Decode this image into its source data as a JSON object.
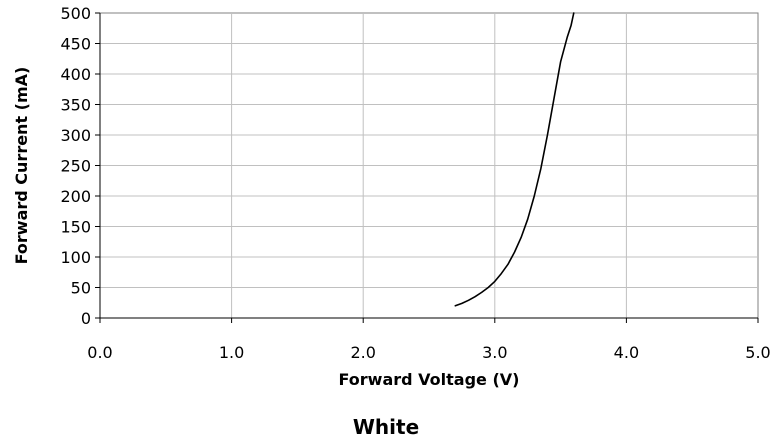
{
  "chart_data": {
    "type": "line",
    "title": "White",
    "xlabel": "Forward Voltage (V)",
    "ylabel": "Forward Current (mA)",
    "xlim": [
      0,
      5
    ],
    "ylim": [
      0,
      500
    ],
    "x_ticks": [
      "0.0",
      "1.0",
      "2.0",
      "3.0",
      "4.0",
      "5.0"
    ],
    "y_ticks": [
      "0",
      "50",
      "100",
      "150",
      "200",
      "250",
      "300",
      "350",
      "400",
      "450",
      "500"
    ],
    "grid": true,
    "legend": "none",
    "colors": {
      "line": "#000000",
      "grid": "#c0c0c0",
      "axis": "#000000",
      "plot_border": "#808080"
    },
    "series": [
      {
        "x": [
          2.7,
          2.75,
          2.8,
          2.85,
          2.9,
          2.95,
          3.0,
          3.05,
          3.1,
          3.15,
          3.2,
          3.25,
          3.3,
          3.35,
          3.4,
          3.45,
          3.5,
          3.55,
          3.58,
          3.6
        ],
        "y": [
          20,
          24,
          29,
          35,
          42,
          50,
          60,
          73,
          88,
          108,
          132,
          162,
          200,
          245,
          300,
          360,
          420,
          460,
          480,
          500
        ]
      }
    ]
  }
}
